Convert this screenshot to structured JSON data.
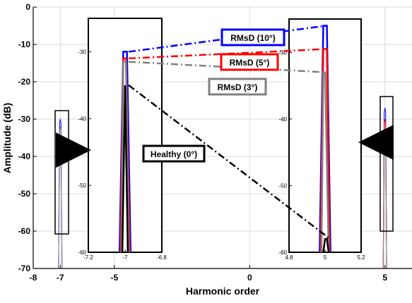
{
  "chart_data": {
    "type": "line",
    "xlabel": "Harmonic order",
    "ylabel": "Amplitude (dB)",
    "xlim": [
      -8,
      6
    ],
    "ylim": [
      -70,
      0
    ],
    "x_ticks": [
      {
        "value": -8,
        "label": "-8"
      },
      {
        "value": -7,
        "label": "-7"
      },
      {
        "value": -5,
        "label": "-5"
      },
      {
        "value": 0,
        "label": "0"
      },
      {
        "value": 5,
        "label": "5"
      }
    ],
    "y_ticks": [
      {
        "value": 0,
        "label": "0"
      },
      {
        "value": -10,
        "label": "-10"
      },
      {
        "value": -20,
        "label": "-20"
      },
      {
        "value": -30,
        "label": "-30"
      },
      {
        "value": -40,
        "label": "-40"
      },
      {
        "value": -50,
        "label": "-50"
      },
      {
        "value": -60,
        "label": "-60"
      },
      {
        "value": -70,
        "label": "-70"
      }
    ],
    "grid": true,
    "series": [
      {
        "name": "Healthy (0°)",
        "color": "#000000",
        "peak_minus5": -35,
        "peak_5": -58
      },
      {
        "name": "RMsD (3°)",
        "color": "#808080",
        "peak_minus5": -31.5,
        "peak_5": -33
      },
      {
        "name": "RMsD (5°)",
        "color": "#ff0000",
        "peak_minus5": -31,
        "peak_5": -29.5
      },
      {
        "name": "RMsD (10°)",
        "color": "#0000ff",
        "peak_minus5": -30,
        "peak_5": -26
      }
    ],
    "main_peaks": [
      {
        "x": -7,
        "top": -30,
        "color": "#0000ff"
      },
      {
        "x": -7,
        "top": -32,
        "color": "#808080"
      },
      {
        "x": 5,
        "top": -27,
        "color": "#0000ff"
      },
      {
        "x": 5,
        "top": -30,
        "color": "#ff0000"
      },
      {
        "x": 5,
        "top": -35,
        "color": "#808080"
      }
    ],
    "inset_left": {
      "xlim": [
        -7.2,
        -6.8
      ],
      "ylim": [
        -60,
        -25
      ],
      "x_ticks": [
        {
          "value": -7.2,
          "label": "-7.2"
        },
        {
          "value": -7,
          "label": "-7"
        },
        {
          "value": -6.8,
          "label": "-6.8"
        }
      ],
      "y_ticks": [
        {
          "value": -30,
          "label": "-30"
        },
        {
          "value": -40,
          "label": "-40"
        },
        {
          "value": -50,
          "label": "-50"
        },
        {
          "value": -60,
          "label": "-60"
        }
      ]
    },
    "inset_right": {
      "xlim": [
        4.8,
        5.2
      ],
      "ylim": [
        -60,
        -25
      ],
      "x_ticks": [
        {
          "value": 4.8,
          "label": "4.8"
        },
        {
          "value": 5,
          "label": "5"
        },
        {
          "value": 5.2,
          "label": "5.2"
        }
      ],
      "y_ticks": [
        {
          "value": -30,
          "label": "-30"
        },
        {
          "value": -40,
          "label": "-40"
        },
        {
          "value": -50,
          "label": "-50"
        },
        {
          "value": -60,
          "label": "-60"
        }
      ]
    }
  }
}
